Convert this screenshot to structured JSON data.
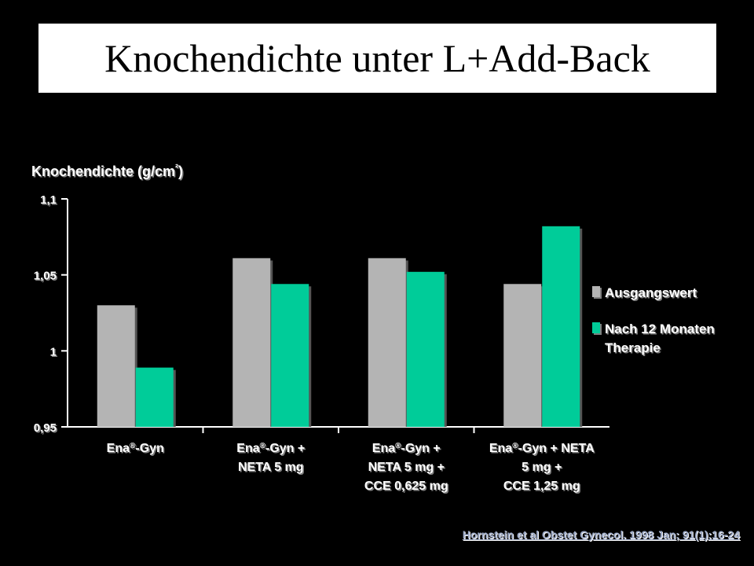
{
  "title": "Knochendichte unter L+Add-Back",
  "citation": "Hornstein et al Obstet Gynecol. 1998 Jan; 91(1):16-24",
  "colors": {
    "baseline": "#b4b4b4",
    "after": "#00cc99",
    "background": "#000000",
    "text": "#ffffff"
  },
  "chart_data": {
    "type": "bar",
    "ylabel": "Knochendichte (g/cm²)",
    "ylim": [
      0.95,
      1.1
    ],
    "yticks": [
      "0,95",
      "1",
      "1,05",
      "1,1"
    ],
    "ytick_values": [
      0.95,
      1.0,
      1.05,
      1.1
    ],
    "categories": [
      [
        "Ena®-Gyn"
      ],
      [
        "Ena®-Gyn +",
        "NETA 5 mg"
      ],
      [
        "Ena®-Gyn +",
        "NETA 5 mg +",
        "CCE 0,625 mg"
      ],
      [
        "Ena®-Gyn + NETA",
        "5 mg +",
        "CCE 1,25 mg"
      ]
    ],
    "series": [
      {
        "name": "Ausgangswert",
        "color": "#b4b4b4",
        "values": [
          1.03,
          1.061,
          1.061,
          1.044
        ]
      },
      {
        "name": "Nach 12 Monaten Therapie",
        "color": "#00cc99",
        "values": [
          0.989,
          1.044,
          1.052,
          1.082
        ]
      }
    ],
    "legend": {
      "position": "right",
      "entries": [
        [
          "Ausgangswert"
        ],
        [
          "Nach 12 Monaten",
          "Therapie"
        ]
      ]
    },
    "grid": false
  }
}
